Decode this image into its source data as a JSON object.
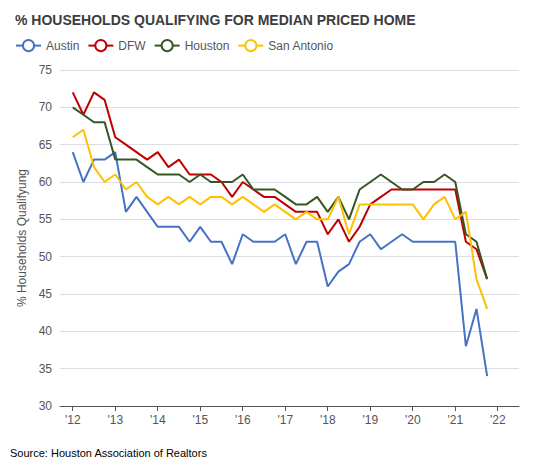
{
  "chart_data": {
    "type": "line",
    "title": "% HOUSEHOLDS QUALIFYING FOR MEDIAN PRICED HOME",
    "ylabel": "% Households Qualifyung",
    "annotations": [
      "Source: Houston Association of Realtors"
    ],
    "x": [
      2012,
      2012.25,
      2012.5,
      2012.75,
      2013,
      2013.25,
      2013.5,
      2013.75,
      2014,
      2014.25,
      2014.5,
      2014.75,
      2015,
      2015.25,
      2015.5,
      2015.75,
      2016,
      2016.25,
      2016.5,
      2016.75,
      2017,
      2017.25,
      2017.5,
      2017.75,
      2018,
      2018.25,
      2018.5,
      2018.75,
      2019,
      2019.25,
      2019.5,
      2019.75,
      2020,
      2020.25,
      2020.5,
      2020.75,
      2021,
      2021.25,
      2021.5,
      2021.75
    ],
    "xlim": [
      2011.7,
      2022.5
    ],
    "xticks": [
      {
        "value": 2012,
        "label": "'12"
      },
      {
        "value": 2013,
        "label": "'13"
      },
      {
        "value": 2014,
        "label": "'14"
      },
      {
        "value": 2015,
        "label": "'15"
      },
      {
        "value": 2016,
        "label": "'16"
      },
      {
        "value": 2017,
        "label": "'17"
      },
      {
        "value": 2018,
        "label": "'18"
      },
      {
        "value": 2019,
        "label": "'19"
      },
      {
        "value": 2020,
        "label": "'20"
      },
      {
        "value": 2021,
        "label": "'21"
      },
      {
        "value": 2022,
        "label": "'22"
      }
    ],
    "ylim": [
      30,
      75
    ],
    "yticks": [
      30,
      35,
      40,
      45,
      50,
      55,
      60,
      65,
      70,
      75
    ],
    "grid": true,
    "legend": "upper left",
    "series": [
      {
        "name": "Austin",
        "color": "#4472C4",
        "values": [
          64,
          60,
          63,
          63,
          64,
          56,
          58,
          56,
          54,
          54,
          54,
          52,
          54,
          52,
          52,
          49,
          53,
          52,
          52,
          52,
          53,
          49,
          52,
          52,
          46,
          48,
          49,
          52,
          53,
          51,
          52,
          53,
          52,
          52,
          52,
          52,
          52,
          38,
          43,
          34
        ]
      },
      {
        "name": "DFW",
        "color": "#C00000",
        "values": [
          72,
          69,
          72,
          71,
          66,
          65,
          64,
          63,
          64,
          62,
          63,
          61,
          61,
          61,
          60,
          58,
          60,
          59,
          58,
          58,
          57,
          56,
          56,
          56,
          53,
          55,
          52,
          54,
          57,
          58,
          59,
          59,
          59,
          59,
          59,
          59,
          59,
          52,
          51,
          47
        ]
      },
      {
        "name": "Houston",
        "color": "#375623",
        "values": [
          70,
          69,
          68,
          68,
          63,
          63,
          63,
          62,
          61,
          61,
          61,
          60,
          61,
          60,
          60,
          60,
          61,
          59,
          59,
          59,
          58,
          57,
          57,
          58,
          56,
          58,
          55,
          59,
          60,
          61,
          60,
          59,
          59,
          60,
          60,
          61,
          60,
          53,
          52,
          47
        ]
      },
      {
        "name": "San Antonio",
        "color": "#FFC000",
        "values": [
          66,
          67,
          62,
          60,
          61,
          59,
          60,
          58,
          57,
          58,
          57,
          58,
          57,
          58,
          58,
          57,
          58,
          57,
          56,
          57,
          56,
          55,
          56,
          55,
          55,
          58,
          53,
          57,
          57,
          57,
          57,
          57,
          57,
          55,
          57,
          58,
          55,
          56,
          47,
          43
        ]
      }
    ]
  }
}
